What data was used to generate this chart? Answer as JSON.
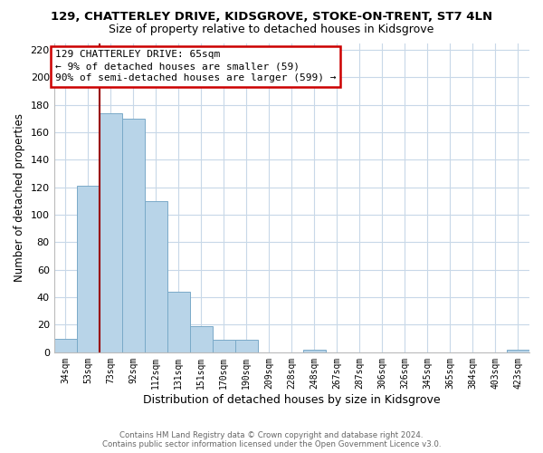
{
  "title": "129, CHATTERLEY DRIVE, KIDSGROVE, STOKE-ON-TRENT, ST7 4LN",
  "subtitle": "Size of property relative to detached houses in Kidsgrove",
  "xlabel": "Distribution of detached houses by size in Kidsgrove",
  "ylabel": "Number of detached properties",
  "bar_labels": [
    "34sqm",
    "53sqm",
    "73sqm",
    "92sqm",
    "112sqm",
    "131sqm",
    "151sqm",
    "170sqm",
    "190sqm",
    "209sqm",
    "228sqm",
    "248sqm",
    "267sqm",
    "287sqm",
    "306sqm",
    "326sqm",
    "345sqm",
    "365sqm",
    "384sqm",
    "403sqm",
    "423sqm"
  ],
  "bar_values": [
    10,
    121,
    174,
    170,
    110,
    44,
    19,
    9,
    9,
    0,
    0,
    2,
    0,
    0,
    0,
    0,
    0,
    0,
    0,
    0,
    2
  ],
  "bar_color": "#b8d4e8",
  "bar_edge_color": "#7aaac8",
  "ylim": [
    0,
    225
  ],
  "yticks": [
    0,
    20,
    40,
    60,
    80,
    100,
    120,
    140,
    160,
    180,
    200,
    220
  ],
  "property_line_color": "#990000",
  "annotation_line1": "129 CHATTERLEY DRIVE: 65sqm",
  "annotation_line2": "← 9% of detached houses are smaller (59)",
  "annotation_line3": "90% of semi-detached houses are larger (599) →",
  "annotation_box_color": "#ffffff",
  "annotation_box_edge": "#cc0000",
  "footer_line1": "Contains HM Land Registry data © Crown copyright and database right 2024.",
  "footer_line2": "Contains public sector information licensed under the Open Government Licence v3.0.",
  "bg_color": "#ffffff",
  "grid_color": "#c8d8e8",
  "title_fontsize": 9.5,
  "subtitle_fontsize": 9,
  "ylabel_fontsize": 8.5,
  "xlabel_fontsize": 9
}
